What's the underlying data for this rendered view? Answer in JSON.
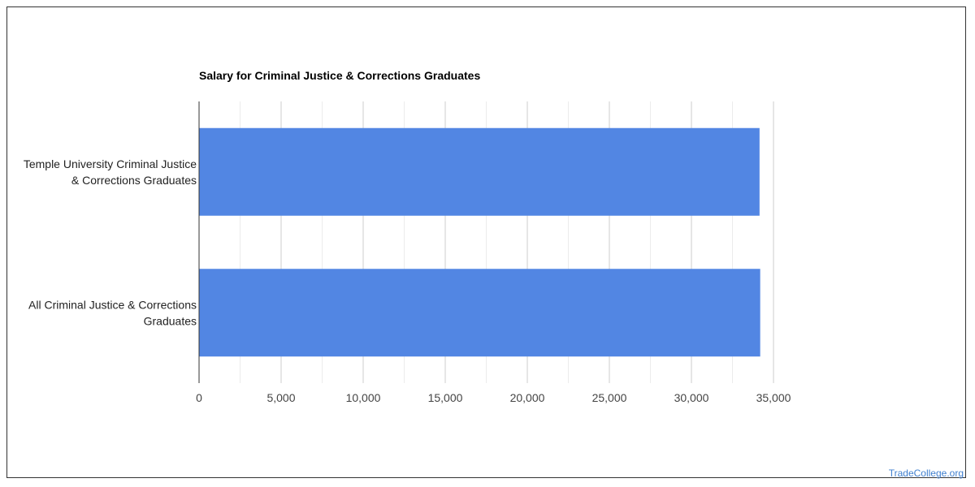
{
  "chart_data": {
    "type": "bar",
    "orientation": "horizontal",
    "title": "Salary for Criminal Justice & Corrections Graduates",
    "xlabel": "",
    "ylabel": "",
    "categories": [
      [
        "Temple University Criminal Justice",
        "& Corrections Graduates"
      ],
      [
        "All Criminal Justice & Corrections",
        "Graduates"
      ]
    ],
    "values": [
      34150,
      34190
    ],
    "xlim": [
      0,
      35000
    ],
    "ticks": [
      "0",
      "5,000",
      "10,000",
      "15,000",
      "20,000",
      "25,000",
      "30,000",
      "35,000"
    ],
    "grid": true,
    "legend": "none",
    "bar_color": "#5286e3"
  },
  "watermark": "TradeCollege.org"
}
